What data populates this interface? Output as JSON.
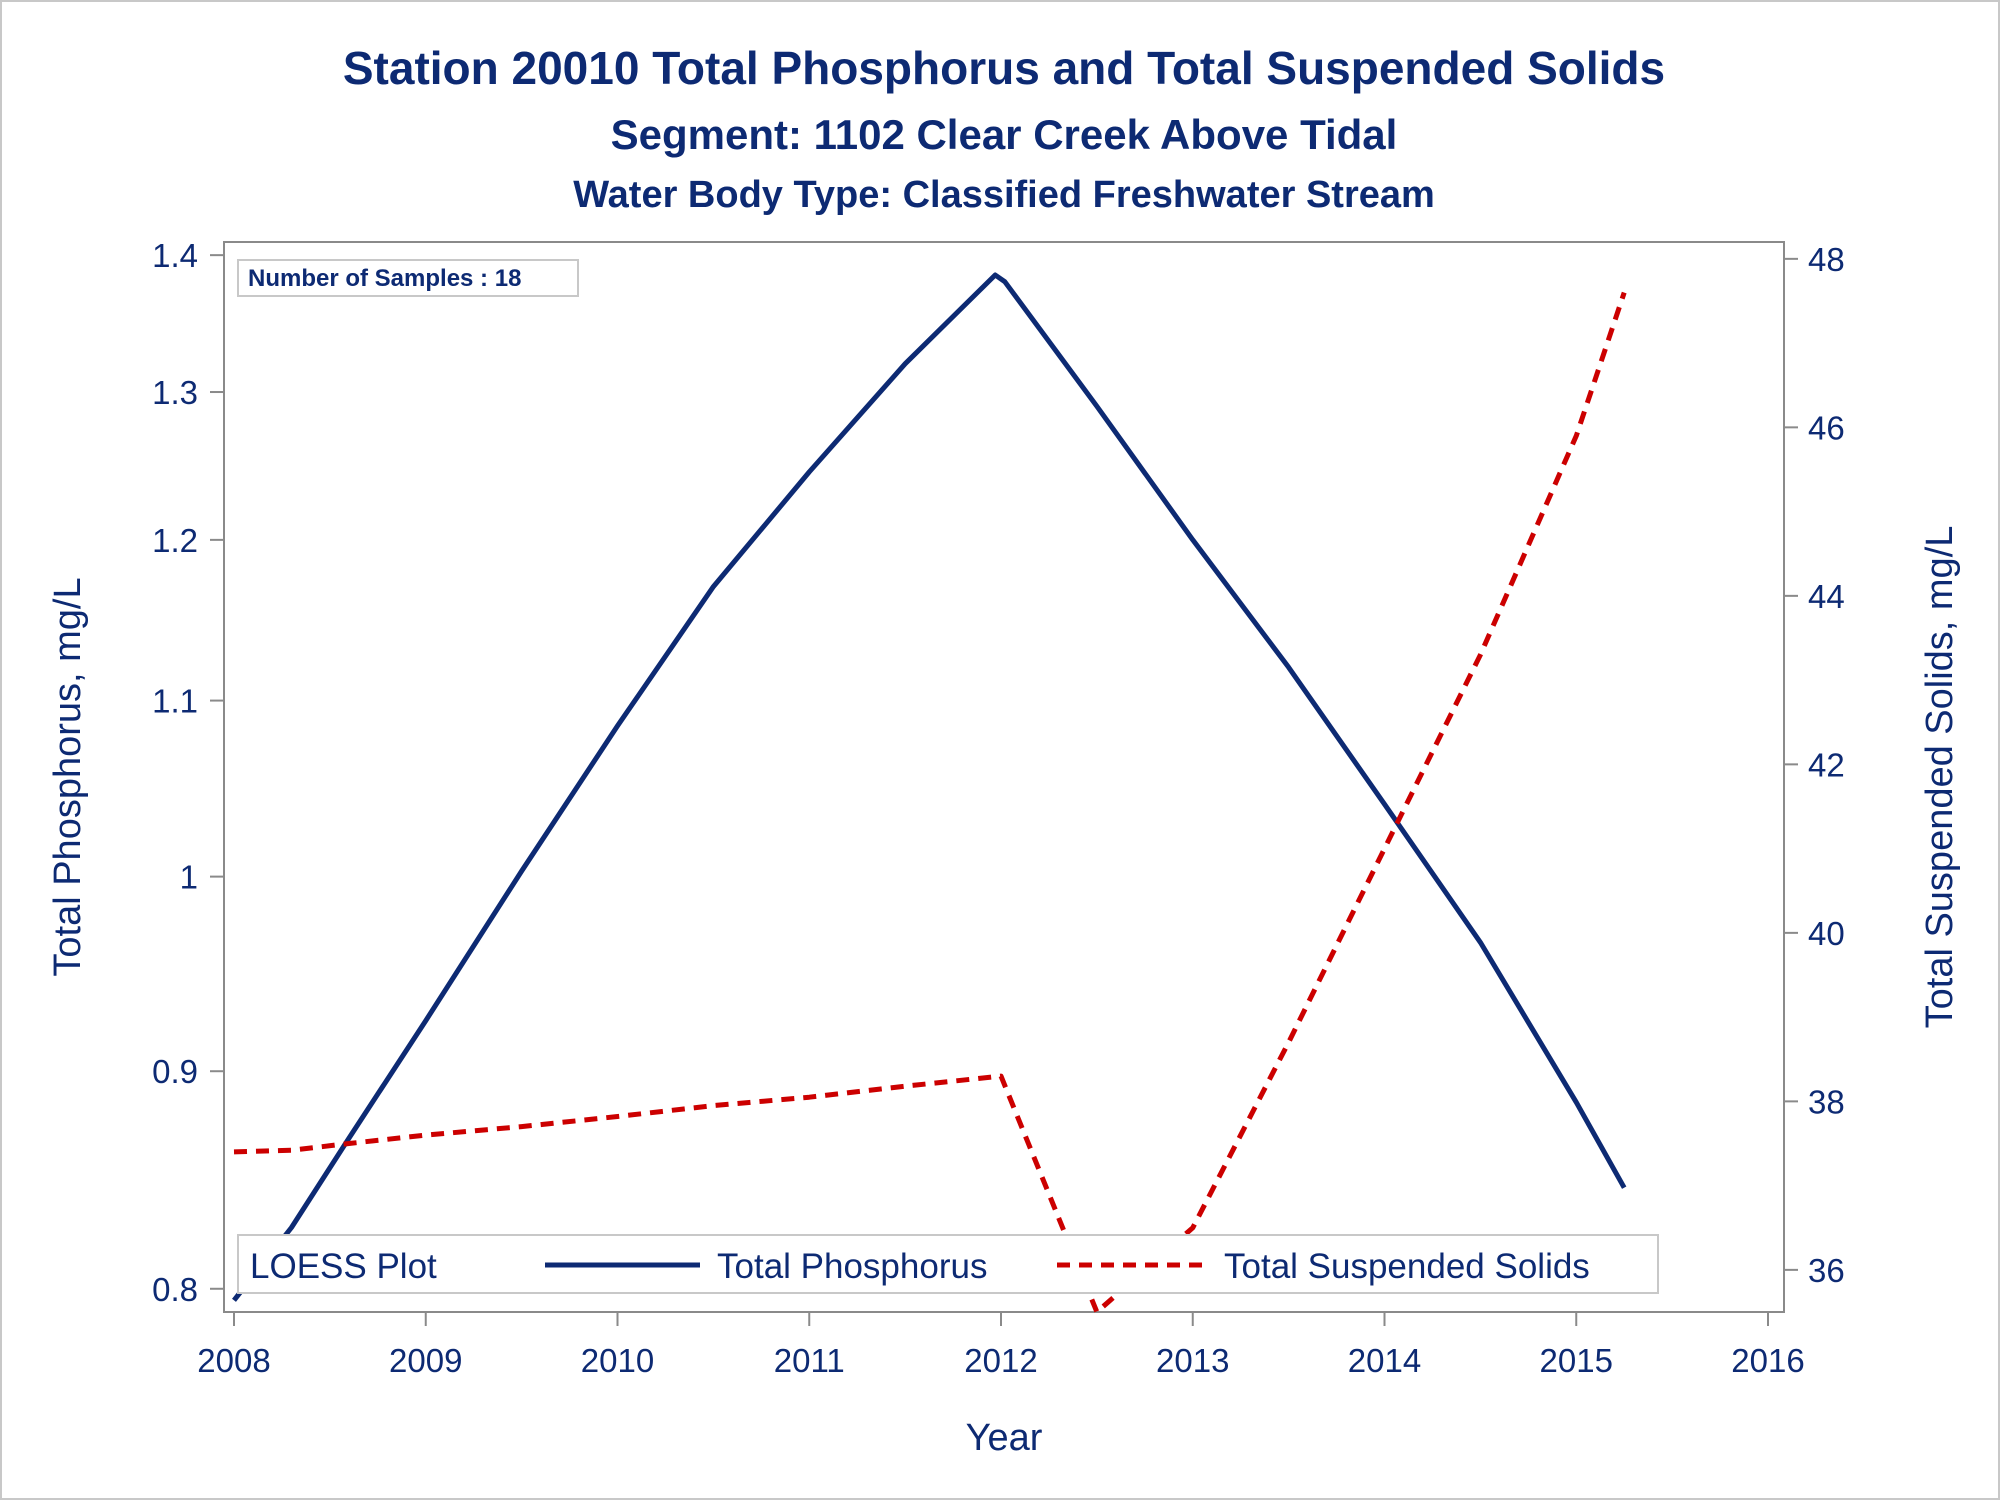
{
  "chart_data": {
    "type": "line",
    "title": "Station 20010  Total Phosphorus and Total Suspended Solids",
    "subtitle": "Segment: 1102  Clear Creek Above Tidal",
    "subtitle2": "Water Body Type: Classified Freshwater Stream",
    "xlabel": "Year",
    "ylabel": "Total Phosphorus, mg/L",
    "y2label": "Total Suspended Solids, mg/L",
    "xlim": [
      2008,
      2016
    ],
    "xticks": [
      "2008",
      "2009",
      "2010",
      "2011",
      "2012",
      "2013",
      "2014",
      "2015",
      "2016"
    ],
    "ylim": [
      0.79,
      1.41
    ],
    "yscale": "log",
    "yticks": [
      "0.8",
      "0.9",
      "1",
      "1.1",
      "1.2",
      "1.3",
      "1.4"
    ],
    "y2lim": [
      35.5,
      48.2
    ],
    "y2ticks": [
      "36",
      "38",
      "40",
      "42",
      "44",
      "46",
      "48"
    ],
    "grid": false,
    "legend_position": "bottom-inside",
    "legend_title": "LOESS Plot",
    "inset_label": "Number of Samples : 18",
    "series": [
      {
        "name": "Total Phosphorus",
        "axis": "left",
        "color": "#0d2a73",
        "style": "solid",
        "x": [
          2008.0,
          2008.3,
          2008.6,
          2009.0,
          2009.5,
          2010.0,
          2010.5,
          2011.0,
          2011.5,
          2011.97,
          2012.02,
          2012.5,
          2013.0,
          2013.5,
          2014.0,
          2014.5,
          2015.0,
          2015.25
        ],
        "y": [
          0.795,
          0.827,
          0.868,
          0.925,
          1.003,
          1.085,
          1.17,
          1.245,
          1.32,
          1.385,
          1.38,
          1.29,
          1.2,
          1.12,
          1.04,
          0.965,
          0.885,
          0.845
        ]
      },
      {
        "name": "Total Suspended Solids",
        "axis": "right",
        "color": "#cc0000",
        "style": "dashed",
        "x": [
          2008.0,
          2008.3,
          2008.6,
          2009.0,
          2009.5,
          2010.0,
          2010.5,
          2011.0,
          2011.5,
          2012.0,
          2012.5,
          2013.0,
          2013.5,
          2014.0,
          2014.5,
          2015.0,
          2015.25
        ],
        "y": [
          37.4,
          37.42,
          37.5,
          37.6,
          37.7,
          37.82,
          37.95,
          38.05,
          38.18,
          38.3,
          35.5,
          36.5,
          38.7,
          41.0,
          43.3,
          45.9,
          47.6
        ]
      }
    ]
  }
}
